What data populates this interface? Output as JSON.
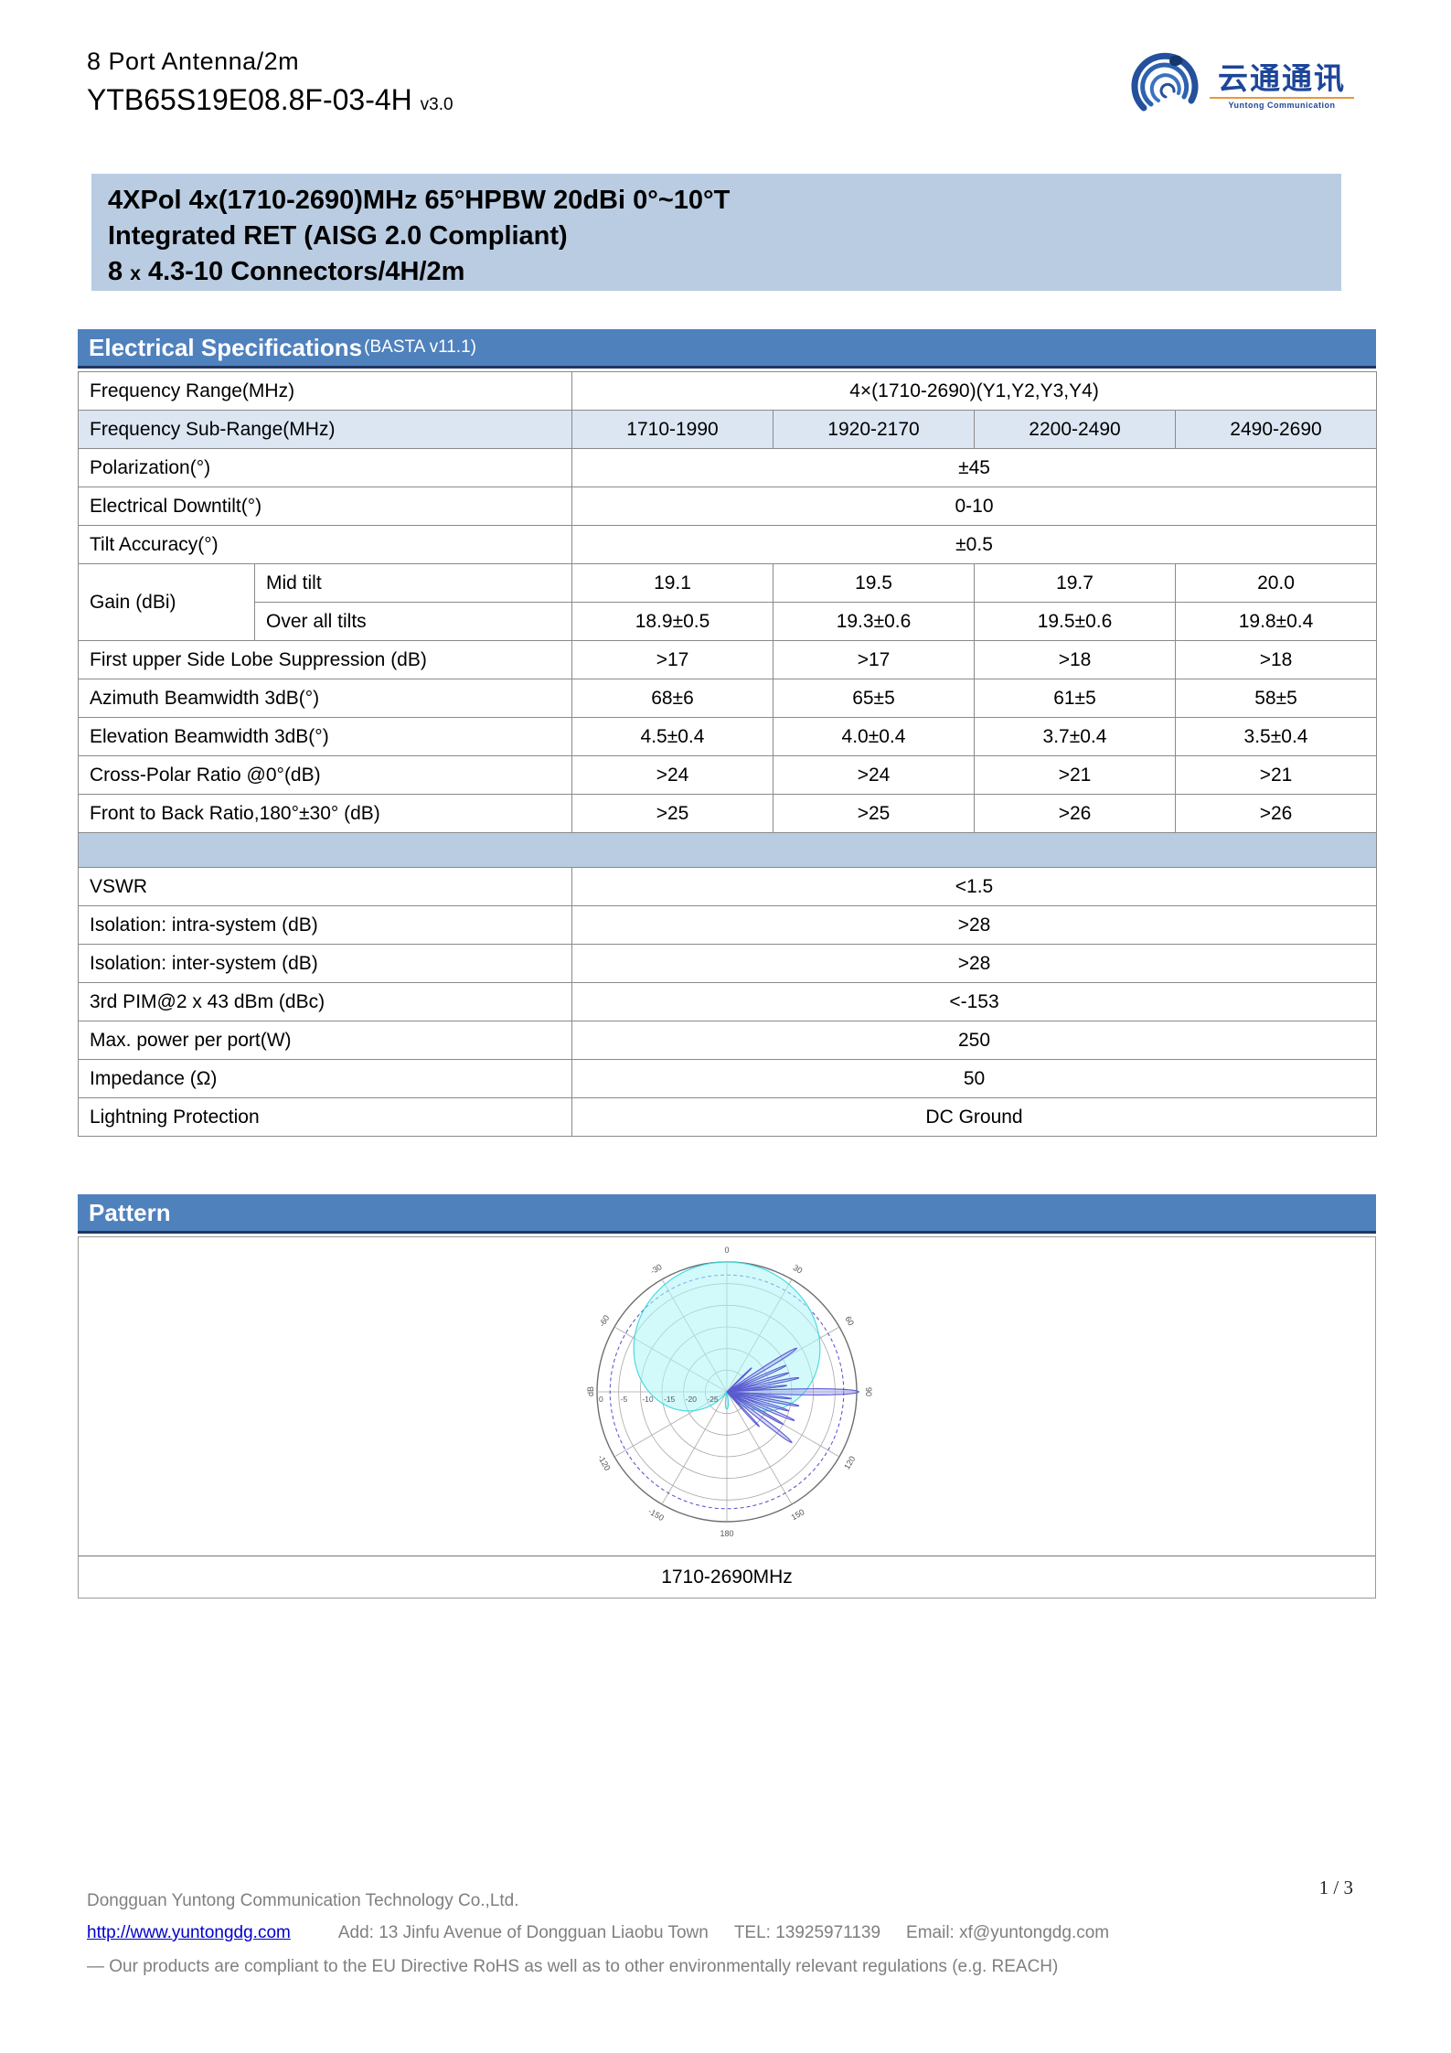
{
  "page": {
    "number": "1 / 3"
  },
  "header": {
    "product_line": "8 Port Antenna/2m",
    "model": "YTB65S19E08.8F-03-4H",
    "version": "v3.0",
    "logo": {
      "cn": "云通通讯",
      "en": "Yuntong Communication"
    }
  },
  "hero": {
    "line1": "4XPol 4x(1710-2690)MHz 65°HPBW 20dBi 0°~10°T",
    "line2": "Integrated RET (AISG 2.0 Compliant)",
    "line3": {
      "num": "8",
      "x": "x",
      "rest": "4.3-10 Connectors/4H/2m"
    }
  },
  "spec_section": {
    "title": "Electrical Specifications",
    "subtitle": "(BASTA v11.1)"
  },
  "spec_table": {
    "rows": [
      {
        "cells": [
          {
            "t": "Frequency Range(MHz)",
            "cls": "lab",
            "cs": 2
          },
          {
            "t": "4×(1710-2690)(Y1,Y2,Y3,Y4)",
            "cs": 4
          }
        ]
      },
      {
        "bg": "#dce6f2",
        "cells": [
          {
            "t": "Frequency Sub-Range(MHz)",
            "cls": "lab",
            "cs": 2
          },
          {
            "t": "1710-1990"
          },
          {
            "t": "1920-2170"
          },
          {
            "t": "2200-2490"
          },
          {
            "t": "2490-2690"
          }
        ]
      },
      {
        "cells": [
          {
            "t": "Polarization(°)",
            "cls": "lab",
            "cs": 2
          },
          {
            "t": "±45",
            "cs": 4
          }
        ]
      },
      {
        "cells": [
          {
            "t": "Electrical Downtilt(°)",
            "cls": "lab",
            "cs": 2
          },
          {
            "t": "0-10",
            "cs": 4
          }
        ]
      },
      {
        "cells": [
          {
            "t": "Tilt Accuracy(°)",
            "cls": "lab",
            "cs": 2
          },
          {
            "t": "±0.5",
            "cs": 4
          }
        ]
      },
      {
        "cells": [
          {
            "t": "Gain (dBi)",
            "cls": "lab",
            "rs": 2
          },
          {
            "t": "Mid tilt",
            "cls": "lab"
          },
          {
            "t": "19.1"
          },
          {
            "t": "19.5"
          },
          {
            "t": "19.7"
          },
          {
            "t": "20.0"
          }
        ]
      },
      {
        "cells": [
          {
            "t": "Over all tilts",
            "cls": "lab"
          },
          {
            "t": "18.9±0.5"
          },
          {
            "t": "19.3±0.6"
          },
          {
            "t": "19.5±0.6"
          },
          {
            "t": "19.8±0.4"
          }
        ]
      },
      {
        "cells": [
          {
            "t": "First upper Side Lobe Suppression (dB)",
            "cls": "lab",
            "cs": 2
          },
          {
            "t": ">17"
          },
          {
            "t": ">17"
          },
          {
            "t": ">18"
          },
          {
            "t": ">18"
          }
        ]
      },
      {
        "cells": [
          {
            "t": "Azimuth Beamwidth 3dB(°)",
            "cls": "lab",
            "cs": 2
          },
          {
            "t": "68±6"
          },
          {
            "t": "65±5"
          },
          {
            "t": "61±5"
          },
          {
            "t": "58±5"
          }
        ]
      },
      {
        "cells": [
          {
            "t": "Elevation Beamwidth 3dB(°)",
            "cls": "lab",
            "cs": 2
          },
          {
            "t": "4.5±0.4"
          },
          {
            "t": "4.0±0.4"
          },
          {
            "t": "3.7±0.4"
          },
          {
            "t": "3.5±0.4"
          }
        ]
      },
      {
        "cells": [
          {
            "t": "Cross-Polar Ratio @0°(dB)",
            "cls": "lab",
            "cs": 2
          },
          {
            "t": ">24"
          },
          {
            "t": ">24"
          },
          {
            "t": ">21"
          },
          {
            "t": ">21"
          }
        ]
      },
      {
        "cells": [
          {
            "t": "Front to Back Ratio,180°±30° (dB)",
            "cls": "lab",
            "cs": 2
          },
          {
            "t": ">25"
          },
          {
            "t": ">25"
          },
          {
            "t": ">26"
          },
          {
            "t": ">26"
          }
        ]
      },
      {
        "cells": [
          {
            "t": "",
            "cls": "sep",
            "cs": 6
          }
        ]
      },
      {
        "cells": [
          {
            "t": "VSWR",
            "cls": "lab",
            "cs": 2
          },
          {
            "t": "<1.5",
            "cs": 4
          }
        ]
      },
      {
        "cells": [
          {
            "t": "Isolation: intra-system (dB)",
            "cls": "lab",
            "cs": 2
          },
          {
            "t": ">28",
            "cs": 4
          }
        ]
      },
      {
        "cells": [
          {
            "t": "Isolation: inter-system (dB)",
            "cls": "lab",
            "cs": 2
          },
          {
            "t": ">28",
            "cs": 4
          }
        ]
      },
      {
        "cells": [
          {
            "t": "3rd PIM@2 x 43 dBm (dBc)",
            "cls": "lab",
            "cs": 2
          },
          {
            "t": "<-153",
            "cs": 4
          }
        ]
      },
      {
        "cells": [
          {
            "t": "Max. power per port(W)",
            "cls": "lab",
            "cs": 2
          },
          {
            "t": "250",
            "cs": 4
          }
        ]
      },
      {
        "cells": [
          {
            "t": "Impedance (Ω)",
            "cls": "lab",
            "cs": 2
          },
          {
            "t": "50",
            "cs": 4
          }
        ]
      },
      {
        "cells": [
          {
            "t": "Lightning Protection",
            "cls": "lab",
            "cs": 2
          },
          {
            "t": "DC Ground",
            "cs": 4
          }
        ]
      }
    ]
  },
  "pattern_section": {
    "title": "Pattern",
    "caption": "1710-2690MHz"
  },
  "chart_data": {
    "type": "polar-pattern",
    "title": "1710-2690MHz",
    "radial_unit": "dB",
    "radial_ticks_db": [
      0,
      -5,
      -10,
      -15,
      -20,
      -25
    ],
    "radial_min_db": -30,
    "angle_labels_deg": [
      0,
      30,
      60,
      90,
      120,
      150,
      180,
      -150,
      -120,
      -60,
      -30
    ],
    "reference_ring_db": -3,
    "series": [
      {
        "name": "azimuth-pattern",
        "color": "#3fd9dd",
        "fill": "rgba(175,245,248,0.55)",
        "beams": [
          {
            "peak_deg": 0,
            "level_db": 0,
            "hpbw_deg": 90
          },
          {
            "peak_deg": 180,
            "level_db": -26,
            "hpbw_deg": 22
          }
        ]
      },
      {
        "name": "elevation-pattern",
        "color": "#5b5bd0",
        "fill": "rgba(140,140,235,0.35)",
        "lobes": [
          {
            "deg": 90,
            "db": 0.5,
            "w": 2.2
          },
          {
            "deg": 58,
            "db": -11,
            "w": 2.5
          },
          {
            "deg": 66,
            "db": -15,
            "w": 2.2
          },
          {
            "deg": 73,
            "db": -15,
            "w": 2.2
          },
          {
            "deg": 79,
            "db": -13,
            "w": 2.0
          },
          {
            "deg": 84,
            "db": -16,
            "w": 1.8
          },
          {
            "deg": 96,
            "db": -15,
            "w": 1.8
          },
          {
            "deg": 101,
            "db": -13,
            "w": 2.0
          },
          {
            "deg": 107,
            "db": -15,
            "w": 2.2
          },
          {
            "deg": 113,
            "db": -13,
            "w": 2.2
          },
          {
            "deg": 120,
            "db": -15,
            "w": 2.2
          },
          {
            "deg": 128,
            "db": -11,
            "w": 2.6
          },
          {
            "deg": 137,
            "db": -19,
            "w": 2.4
          },
          {
            "deg": 46,
            "db": -22,
            "w": 2.4
          }
        ]
      }
    ]
  },
  "footer": {
    "company": "Dongguan Yuntong Communication Technology Co.,Ltd.",
    "website": "http://www.yuntongdg.com",
    "address_label": "Add:",
    "address": "13 Jinfu Avenue   of Dongguan Liaobu Town",
    "tel_label": "TEL:",
    "tel": "13925971139",
    "email_label": "Email:",
    "email": "xf@yuntongdg.com",
    "compliance": "—  Our products are compliant to the EU Directive RoHS as well as to other environmentally relevant regulations (e.g. REACH)"
  }
}
